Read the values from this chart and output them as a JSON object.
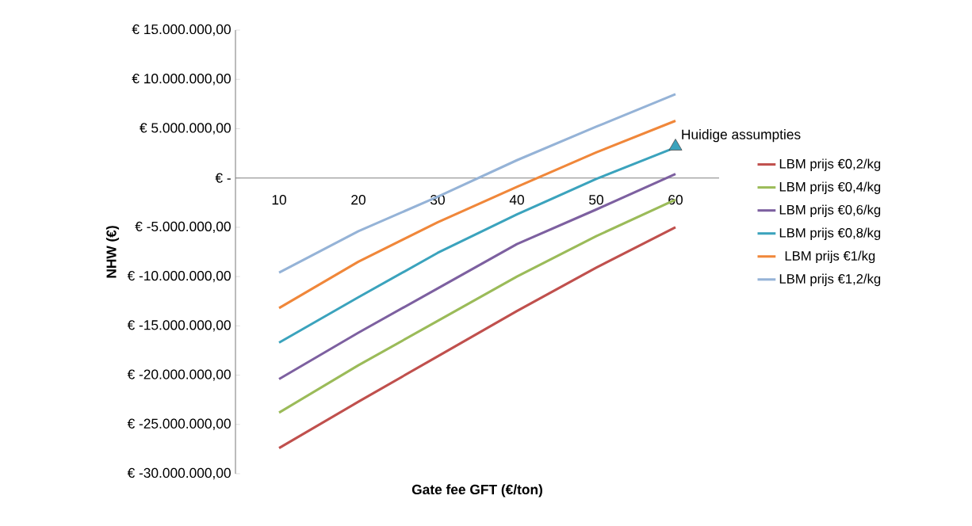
{
  "chart_data": {
    "type": "line",
    "xlabel": "Gate fee GFT (€/ton)",
    "ylabel": "NHW (€)",
    "categories": [
      "10",
      "20",
      "30",
      "40",
      "50",
      "60"
    ],
    "ylim": [
      -30000000,
      15000000
    ],
    "yticks": [
      {
        "value": -30000000,
        "label": "€ -30.000.000,00"
      },
      {
        "value": -25000000,
        "label": "€ -25.000.000,00"
      },
      {
        "value": -20000000,
        "label": "€ -20.000.000,00"
      },
      {
        "value": -15000000,
        "label": "€ -15.000.000,00"
      },
      {
        "value": -10000000,
        "label": "€ -10.000.000,00"
      },
      {
        "value": -5000000,
        "label": "€ -5.000.000,00"
      },
      {
        "value": 0,
        "label": "€ -"
      },
      {
        "value": 5000000,
        "label": "€ 5.000.000,00"
      },
      {
        "value": 10000000,
        "label": "€ 10.000.000,00"
      },
      {
        "value": 15000000,
        "label": "€ 15.000.000,00"
      }
    ],
    "series": [
      {
        "name": "LBM prijs €0,2/kg",
        "color": "#c0504d",
        "values": [
          -27400000,
          -22700000,
          -18100000,
          -13500000,
          -9100000,
          -5000000
        ]
      },
      {
        "name": "LBM prijs €0,4/kg",
        "color": "#9bbb59",
        "values": [
          -23800000,
          -19000000,
          -14500000,
          -10000000,
          -5900000,
          -2200000
        ]
      },
      {
        "name": "LBM prijs €0,6/kg",
        "color": "#7d60a0",
        "values": [
          -20400000,
          -15700000,
          -11200000,
          -6700000,
          -3200000,
          400000
        ]
      },
      {
        "name": "LBM prijs €0,8/kg",
        "color": "#3ba3bd",
        "values": [
          -16700000,
          -12100000,
          -7600000,
          -3700000,
          -100000,
          3100000
        ]
      },
      {
        "name": "LBM prijs €1/kg",
        "color": "#f0873a",
        "values": [
          -13200000,
          -8500000,
          -4500000,
          -900000,
          2600000,
          5800000
        ]
      },
      {
        "name": "LBM prijs €1,2/kg",
        "color": "#95b3d7",
        "values": [
          -9600000,
          -5400000,
          -1900000,
          1800000,
          5200000,
          8500000
        ]
      },
      {
        "type": "scatter",
        "color": "#3ba3bd",
        "marker": "triangle",
        "x": [
          "60"
        ],
        "values": [
          3200000
        ]
      }
    ],
    "annotations": [
      {
        "text": "Huidige assumpties",
        "x": "60",
        "y": 3200000
      }
    ],
    "legend": "right",
    "grid": false
  }
}
